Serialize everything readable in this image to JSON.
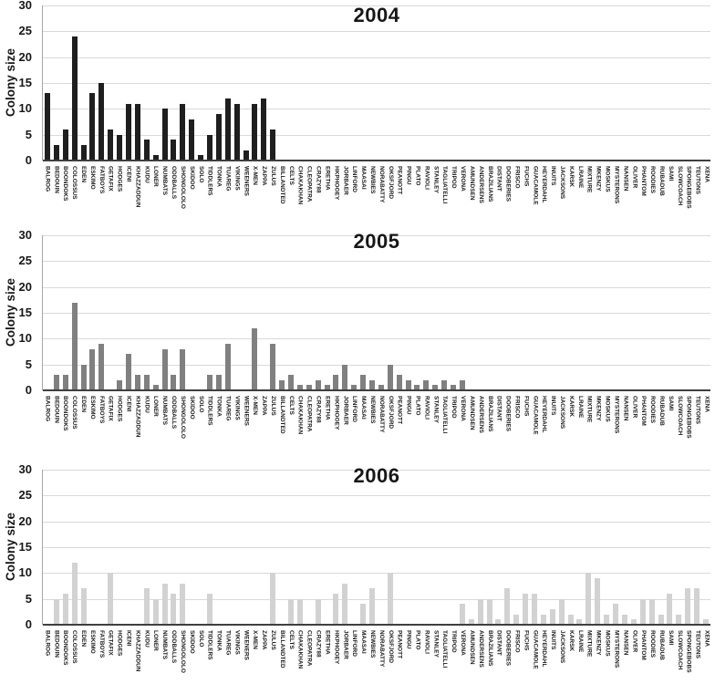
{
  "page": {
    "background": "#ffffff"
  },
  "chart_data": {
    "type": "bar",
    "ylabel": "Colony size",
    "ylim": [
      0,
      30
    ],
    "yticks": [
      30,
      25,
      20,
      15,
      10,
      5,
      0
    ],
    "grid": "horizontal",
    "legend": "none",
    "grid_color": "#d9d9d9",
    "categories": [
      "BALROG",
      "BEDOUIN",
      "BOONDOKS",
      "COLOSSUS",
      "EDEN",
      "ESKIMO",
      "FATBOYS",
      "GETAFIX",
      "HODGES",
      "ICENI",
      "KHAZZADDUN",
      "KUDU",
      "LONER",
      "NUMBATS",
      "ODDBALLS",
      "SHONGOLOLO",
      "SKIDOO",
      "SOLO",
      "TIDDLERS",
      "TONKA",
      "TUAREG",
      "VIKINGS",
      "WEENERS",
      "X-MEN",
      "ZAPPA",
      "ZULUS",
      "BILLANDTED",
      "CELTS",
      "CHAKAKHAN",
      "CLEOPATRA",
      "CRAZY88",
      "ERETHA",
      "HKPHOOEY",
      "JORBAER",
      "LINFORD",
      "MAASAI",
      "NEWBIES",
      "NORABATTY",
      "OKSFJORD",
      "PEANOTT",
      "PINGU",
      "PLATO",
      "RAVIOLI",
      "STANLEY",
      "TAGLIATELLI",
      "TRIPOD",
      "VERONA",
      "AMUNDSEN",
      "ANDERSENS",
      "BRAZILIANS",
      "DISTANT",
      "DOOBERIES",
      "FRISCO",
      "FUCHS",
      "GUACAMOLE",
      "HEYERDAHL",
      "INUITS",
      "JACKSONS",
      "KARSK",
      "LRAINE",
      "MIXTURE",
      "MKENZY",
      "MOSKUS",
      "MYSTERONS",
      "NANSEN",
      "OLIVER",
      "PHANTOM",
      "ROODIES",
      "RUBADUB",
      "SAMI",
      "SLOWCOACH",
      "SPONGEBOBS",
      "TEUTONS",
      "XENA"
    ],
    "series": [
      {
        "name": "2004",
        "color": "#1f1f1f",
        "values": [
          13,
          3,
          6,
          24,
          3,
          13,
          15,
          6,
          5,
          11,
          11,
          4,
          1,
          10,
          4,
          11,
          8,
          1,
          5,
          9,
          12,
          11,
          2,
          11,
          12,
          6,
          0,
          0,
          0,
          0,
          0,
          0,
          0,
          0,
          0,
          0,
          0,
          0,
          0,
          0,
          0,
          0,
          0,
          0,
          0,
          0,
          0,
          0,
          0,
          0,
          0,
          0,
          0,
          0,
          0,
          0,
          0,
          0,
          0,
          0,
          0,
          0,
          0,
          0,
          0,
          0,
          0,
          0,
          0,
          0,
          0,
          0,
          0,
          0
        ]
      },
      {
        "name": "2005",
        "color": "#808080",
        "values": [
          0,
          3,
          3,
          17,
          5,
          8,
          9,
          0,
          2,
          7,
          3,
          3,
          1,
          8,
          3,
          8,
          0,
          0,
          3,
          3,
          9,
          0,
          0,
          12,
          0,
          9,
          2,
          3,
          1,
          1,
          2,
          1,
          3,
          5,
          1,
          3,
          2,
          1,
          5,
          3,
          2,
          1,
          2,
          1,
          2,
          1,
          2,
          0,
          0,
          0,
          0,
          0,
          0,
          0,
          0,
          0,
          0,
          0,
          0,
          0,
          0,
          0,
          0,
          0,
          0,
          0,
          0,
          0,
          0,
          0,
          0,
          0,
          0,
          0
        ]
      },
      {
        "name": "2006",
        "color": "#d2d2d2",
        "values": [
          0,
          5,
          6,
          12,
          7,
          0,
          0,
          10,
          0,
          0,
          0,
          7,
          5,
          8,
          6,
          8,
          0,
          0,
          6,
          0,
          0,
          0,
          0,
          0,
          0,
          10,
          0,
          5,
          5,
          0,
          5,
          0,
          6,
          8,
          0,
          4,
          7,
          0,
          10,
          0,
          0,
          0,
          0,
          0,
          0,
          0,
          4,
          1,
          5,
          5,
          1,
          7,
          2,
          6,
          6,
          2,
          3,
          5,
          2,
          1,
          10,
          9,
          2,
          4,
          2,
          1,
          5,
          5,
          2,
          6,
          2,
          7,
          7,
          1
        ]
      }
    ]
  }
}
